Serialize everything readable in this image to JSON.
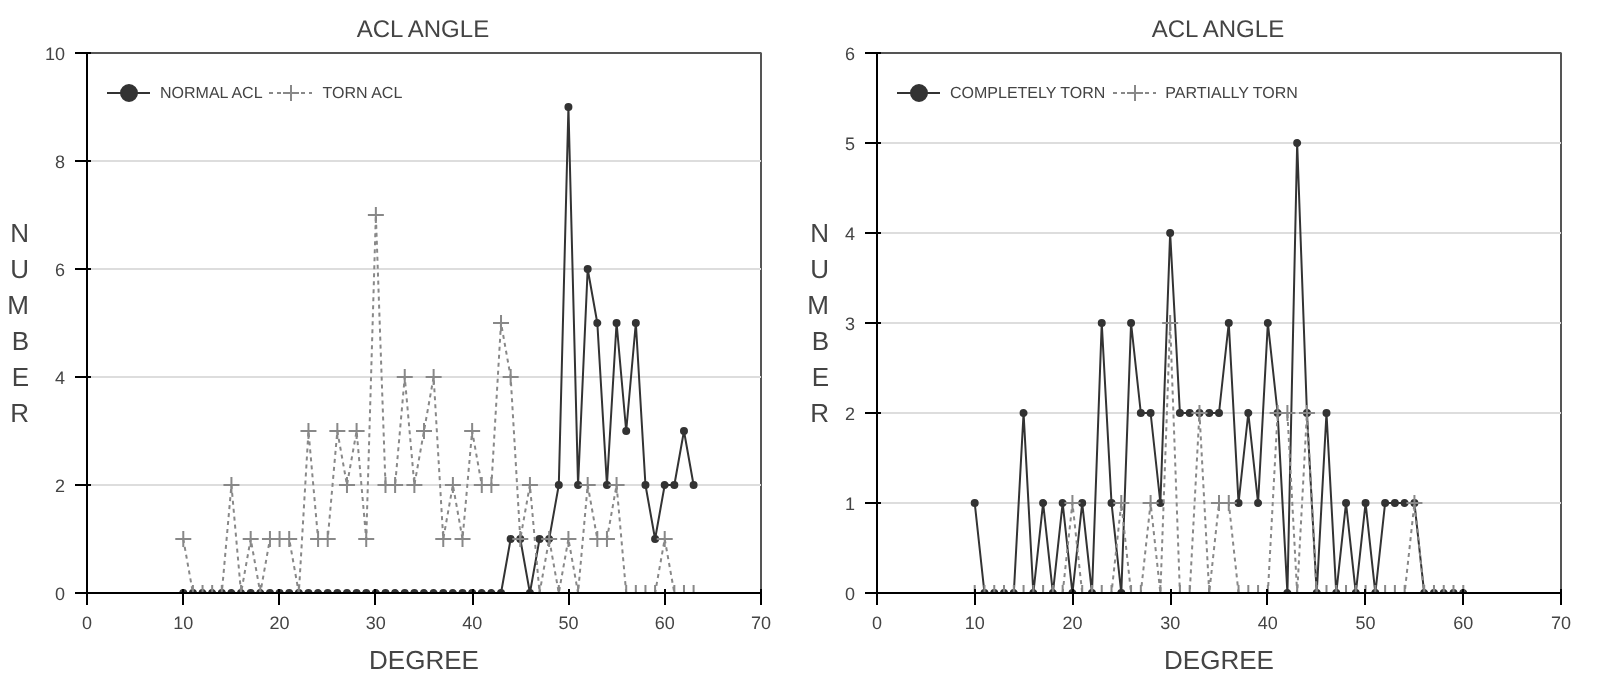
{
  "chart_data": [
    {
      "type": "line",
      "title": "ACL ANGLE",
      "xlabel": "DEGREE",
      "ylabel": "NUMBER",
      "xlim": [
        0,
        70
      ],
      "xticks": [
        0,
        10,
        20,
        30,
        40,
        50,
        60,
        70
      ],
      "ylim": [
        0,
        10
      ],
      "yticks": [
        0,
        2,
        4,
        6,
        8,
        10
      ],
      "grid": "y",
      "legend": "top left",
      "series": [
        {
          "name": "NORMAL ACL",
          "color": "#333333",
          "marker": "circle",
          "line_style": "solid",
          "x": [
            10,
            11,
            12,
            13,
            14,
            15,
            16,
            17,
            18,
            19,
            20,
            21,
            22,
            23,
            24,
            25,
            26,
            27,
            28,
            29,
            30,
            31,
            32,
            33,
            34,
            35,
            36,
            37,
            38,
            39,
            40,
            41,
            42,
            43,
            44,
            45,
            46,
            47,
            48,
            49,
            50,
            51,
            52,
            53,
            54,
            55,
            56,
            57,
            58,
            59,
            60,
            61,
            62,
            63
          ],
          "values": [
            0,
            0,
            0,
            0,
            0,
            0,
            0,
            0,
            0,
            0,
            0,
            0,
            0,
            0,
            0,
            0,
            0,
            0,
            0,
            0,
            0,
            0,
            0,
            0,
            0,
            0,
            0,
            0,
            0,
            0,
            0,
            0,
            0,
            0,
            1,
            1,
            0,
            1,
            1,
            2,
            9,
            2,
            6,
            5,
            2,
            5,
            3,
            5,
            2,
            1,
            2,
            2,
            3,
            2
          ]
        },
        {
          "name": "TORN ACL",
          "color": "#888888",
          "marker": "cross",
          "line_style": "dotted",
          "x": [
            10,
            11,
            12,
            13,
            14,
            15,
            16,
            17,
            18,
            19,
            20,
            21,
            22,
            23,
            24,
            25,
            26,
            27,
            28,
            29,
            30,
            31,
            32,
            33,
            34,
            35,
            36,
            37,
            38,
            39,
            40,
            41,
            42,
            43,
            44,
            45,
            46,
            47,
            48,
            49,
            50,
            51,
            52,
            53,
            54,
            55,
            56,
            57,
            58,
            59,
            60,
            61,
            62,
            63
          ],
          "values": [
            1,
            0,
            0,
            0,
            0,
            2,
            0,
            1,
            0,
            1,
            1,
            1,
            0,
            3,
            1,
            1,
            3,
            2,
            3,
            1,
            7,
            2,
            2,
            4,
            2,
            3,
            4,
            1,
            2,
            1,
            3,
            2,
            2,
            5,
            4,
            1,
            2,
            0,
            1,
            0,
            1,
            0,
            2,
            1,
            1,
            2,
            0,
            0,
            0,
            0,
            1,
            0,
            0,
            0
          ]
        }
      ]
    },
    {
      "type": "line",
      "title": "ACL ANGLE",
      "xlabel": "DEGREE",
      "ylabel": "NUMBER",
      "xlim": [
        0,
        70
      ],
      "xticks": [
        0,
        10,
        20,
        30,
        40,
        50,
        60,
        70
      ],
      "ylim": [
        0,
        6
      ],
      "yticks": [
        0,
        1,
        2,
        3,
        4,
        5,
        6
      ],
      "grid": "y",
      "legend": "top left",
      "series": [
        {
          "name": "COMPLETELY TORN",
          "color": "#333333",
          "marker": "circle",
          "line_style": "solid",
          "x": [
            10,
            11,
            12,
            13,
            14,
            15,
            16,
            17,
            18,
            19,
            20,
            21,
            22,
            23,
            24,
            25,
            26,
            27,
            28,
            29,
            30,
            31,
            32,
            33,
            34,
            35,
            36,
            37,
            38,
            39,
            40,
            41,
            42,
            43,
            44,
            45,
            46,
            47,
            48,
            49,
            50,
            51,
            52,
            53,
            54,
            55,
            56,
            57,
            58,
            59,
            60
          ],
          "values": [
            1,
            0,
            0,
            0,
            0,
            2,
            0,
            1,
            0,
            1,
            0,
            1,
            0,
            3,
            1,
            0,
            3,
            2,
            2,
            1,
            4,
            2,
            2,
            2,
            2,
            2,
            3,
            1,
            2,
            1,
            3,
            2,
            0,
            5,
            2,
            0,
            2,
            0,
            1,
            0,
            1,
            0,
            1,
            1,
            1,
            1,
            0,
            0,
            0,
            0,
            0
          ]
        },
        {
          "name": "PARTIALLY TORN",
          "color": "#888888",
          "marker": "cross",
          "line_style": "dotted",
          "x": [
            10,
            11,
            12,
            13,
            14,
            15,
            16,
            17,
            18,
            19,
            20,
            21,
            22,
            23,
            24,
            25,
            26,
            27,
            28,
            29,
            30,
            31,
            32,
            33,
            34,
            35,
            36,
            37,
            38,
            39,
            40,
            41,
            42,
            43,
            44,
            45,
            46,
            47,
            48,
            49,
            50,
            51,
            52,
            53,
            54,
            55,
            56,
            57,
            58,
            59,
            60
          ],
          "values": [
            0,
            0,
            0,
            0,
            0,
            0,
            0,
            0,
            0,
            0,
            1,
            0,
            0,
            0,
            0,
            1,
            0,
            0,
            1,
            0,
            3,
            0,
            0,
            2,
            0,
            1,
            1,
            0,
            0,
            0,
            0,
            2,
            2,
            0,
            2,
            0,
            0,
            0,
            0,
            0,
            0,
            0,
            0,
            0,
            0,
            1,
            0,
            0,
            0,
            0,
            0
          ]
        }
      ]
    }
  ]
}
